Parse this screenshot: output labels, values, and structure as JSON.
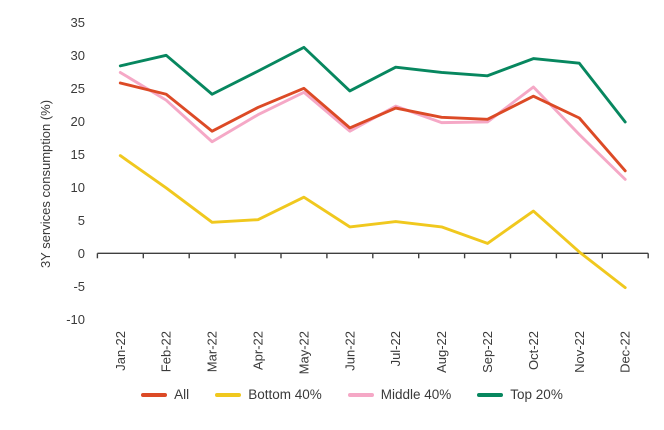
{
  "chart_data": {
    "type": "line",
    "title": "",
    "xlabel": "",
    "ylabel": "3Y services consumption (%)",
    "categories": [
      "Jan-22",
      "Feb-22",
      "Mar-22",
      "Apr-22",
      "May-22",
      "Jun-22",
      "Jul-22",
      "Aug-22",
      "Sep-22",
      "Oct-22",
      "Nov-22",
      "Dec-22"
    ],
    "series": [
      {
        "name": "All",
        "color": "#dc4a26",
        "values": [
          25.8,
          24.1,
          18.5,
          22.1,
          25.0,
          19.0,
          22.0,
          20.6,
          20.3,
          23.8,
          20.5,
          12.5
        ]
      },
      {
        "name": "Bottom 40%",
        "color": "#f0c81e",
        "values": [
          14.8,
          9.9,
          4.7,
          5.1,
          8.5,
          4.0,
          4.8,
          4.0,
          1.5,
          6.4,
          0.2,
          -5.2
        ]
      },
      {
        "name": "Middle 40%",
        "color": "#f5a8c6",
        "values": [
          27.4,
          23.2,
          16.9,
          21.0,
          24.4,
          18.5,
          22.3,
          19.8,
          19.9,
          25.2,
          18.0,
          11.2
        ]
      },
      {
        "name": "Top 20%",
        "color": "#07875f",
        "values": [
          28.4,
          30.0,
          24.1,
          27.6,
          31.2,
          24.6,
          28.2,
          27.4,
          26.9,
          29.5,
          28.8,
          19.9
        ]
      }
    ],
    "ylim": [
      -10,
      35
    ],
    "yticks": [
      35,
      30,
      25,
      20,
      15,
      10,
      5,
      0,
      -5,
      -10
    ],
    "grid": false,
    "legend_position": "bottom",
    "axis_color": "#3f3f3f",
    "text_color": "#3a3a3a"
  }
}
